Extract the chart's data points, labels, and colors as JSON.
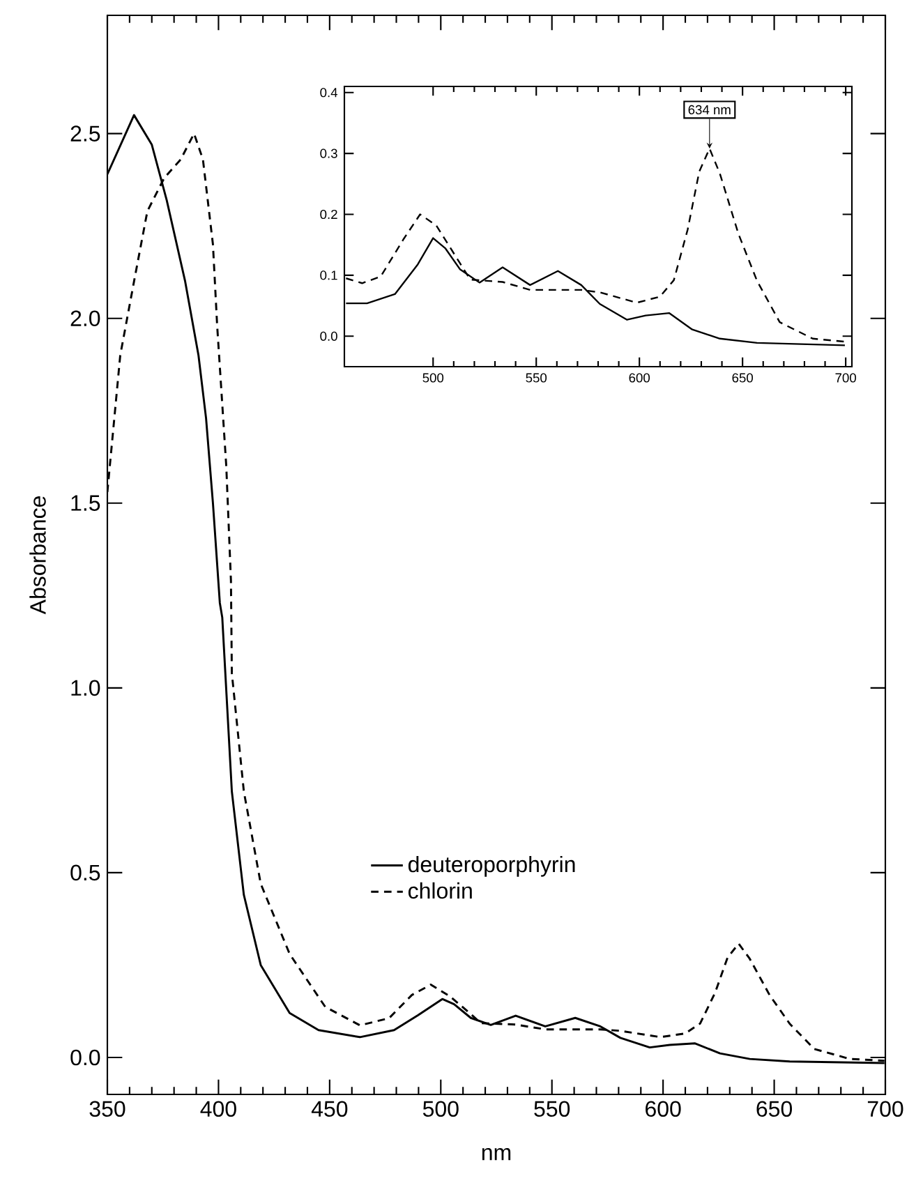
{
  "chart_data": [
    {
      "type": "line",
      "xlabel": "nm",
      "ylabel": "Absorbance",
      "xlim": [
        350,
        700
      ],
      "ylim": [
        -0.1,
        2.82
      ],
      "xticks": [
        350,
        400,
        450,
        500,
        550,
        600,
        650,
        700
      ],
      "yticks": [
        {
          "value": 0,
          "label": "0.0"
        },
        {
          "value": 0.5,
          "label": "0.5"
        },
        {
          "value": 1,
          "label": "1.0"
        },
        {
          "value": 1.5,
          "label": "1.5"
        },
        {
          "value": 2,
          "label": "2.0"
        },
        {
          "value": 2.5,
          "label": "2.5"
        }
      ],
      "legend": "center",
      "series": [
        {
          "name": "deuteroporphyrin",
          "color": "#000000",
          "line_style": "solid",
          "x": [
            350,
            362,
            370,
            376.7,
            385,
            391,
            394.4,
            397.5,
            400.6,
            401.7,
            406,
            411.4,
            419,
            432,
            445,
            463.6,
            479,
            489.7,
            500.7,
            506,
            513.5,
            522.5,
            533.7,
            547,
            560.5,
            571.8,
            580.8,
            594,
            603,
            614.4,
            625.6,
            639,
            657,
            699.6
          ],
          "values": [
            2.39,
            2.55,
            2.47,
            2.32,
            2.1,
            1.9,
            1.73,
            1.5,
            1.23,
            1.19,
            0.72,
            0.44,
            0.25,
            0.12,
            0.074,
            0.055,
            0.074,
            0.114,
            0.158,
            0.144,
            0.107,
            0.088,
            0.113,
            0.084,
            0.107,
            0.084,
            0.053,
            0.027,
            0.034,
            0.038,
            0.011,
            -0.004,
            -0.011,
            -0.015
          ]
        },
        {
          "name": "chlorin",
          "color": "#000000",
          "line_style": "dashed",
          "x": [
            350,
            355.8,
            362,
            368,
            375.6,
            383,
            389,
            393,
            397.5,
            399.4,
            403.5,
            405.6,
            406,
            411.4,
            419,
            432,
            448,
            463.6,
            476.7,
            487,
            495.5,
            504,
            513,
            518,
            533.7,
            547,
            571.8,
            580.8,
            598.8,
            610,
            616.7,
            623.4,
            629,
            634,
            639,
            648,
            657,
            668,
            684,
            699.6
          ],
          "values": [
            1.53,
            1.9,
            2.1,
            2.29,
            2.38,
            2.43,
            2.5,
            2.43,
            2.2,
            1.98,
            1.6,
            1.29,
            1.04,
            0.72,
            0.47,
            0.28,
            0.137,
            0.087,
            0.106,
            0.169,
            0.197,
            0.166,
            0.12,
            0.093,
            0.089,
            0.076,
            0.076,
            0.072,
            0.055,
            0.065,
            0.092,
            0.175,
            0.27,
            0.308,
            0.267,
            0.168,
            0.091,
            0.023,
            -0.004,
            -0.009
          ]
        }
      ]
    },
    {
      "type": "line",
      "xlim": [
        457,
        703
      ],
      "ylim": [
        -0.05,
        0.41
      ],
      "xticks": [
        500,
        550,
        600,
        650,
        700
      ],
      "yticks": [
        {
          "value": 0,
          "label": "0.0"
        },
        {
          "value": 0.1,
          "label": "0.1"
        },
        {
          "value": 0.2,
          "label": "0.2"
        },
        {
          "value": 0.3,
          "label": "0.3"
        },
        {
          "value": 0.4,
          "label": "0.4"
        }
      ],
      "annotations": [
        {
          "text": "634 nm",
          "x": 634,
          "y": 0.308
        }
      ],
      "series": [
        {
          "color": "#000000",
          "line_style": "solid",
          "x": [
            457.8,
            468,
            481.5,
            492.6,
            500,
            506,
            513,
            522.5,
            533.7,
            547,
            560.5,
            571.8,
            580.8,
            594,
            603,
            614.4,
            625.6,
            639,
            657,
            699.6
          ],
          "values": [
            0.054,
            0.054,
            0.069,
            0.118,
            0.161,
            0.144,
            0.11,
            0.088,
            0.113,
            0.084,
            0.107,
            0.084,
            0.053,
            0.027,
            0.034,
            0.038,
            0.011,
            -0.004,
            -0.011,
            -0.015
          ]
        },
        {
          "color": "#000000",
          "line_style": "dashed",
          "x": [
            457.8,
            465.6,
            474.6,
            485.8,
            493.7,
            501.5,
            513,
            518,
            533.7,
            547,
            571.8,
            580.8,
            598.8,
            610,
            616.7,
            623.4,
            629,
            634,
            639,
            648,
            657,
            668,
            684,
            699.6
          ],
          "values": [
            0.095,
            0.087,
            0.098,
            0.16,
            0.2,
            0.182,
            0.12,
            0.093,
            0.089,
            0.076,
            0.076,
            0.072,
            0.055,
            0.065,
            0.092,
            0.175,
            0.27,
            0.308,
            0.267,
            0.168,
            0.091,
            0.023,
            -0.004,
            -0.009
          ]
        }
      ]
    }
  ]
}
